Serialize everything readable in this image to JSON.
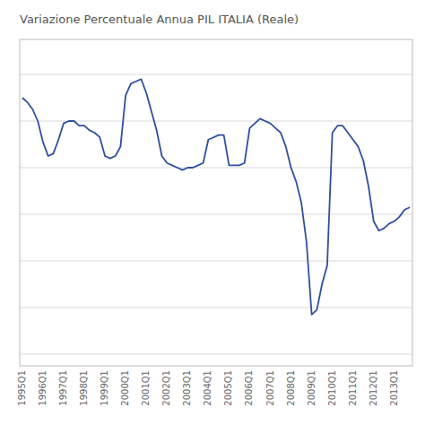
{
  "chart_data": {
    "type": "line",
    "title": "Variazione Percentuale Annua PIL ITALIA (Reale)",
    "categories": [
      "1995Q1",
      null,
      null,
      null,
      "1996Q1",
      null,
      null,
      null,
      "1997Q1",
      null,
      null,
      null,
      "1998Q1",
      null,
      null,
      null,
      "1999Q1",
      null,
      null,
      null,
      "2000Q1",
      null,
      null,
      null,
      "2001Q1",
      null,
      null,
      null,
      "2002Q1",
      null,
      null,
      null,
      "2003Q1",
      null,
      null,
      null,
      "2004Q1",
      null,
      null,
      null,
      "2005Q1",
      null,
      null,
      null,
      "2006Q1",
      null,
      null,
      null,
      "2007Q1",
      null,
      null,
      null,
      "2008Q1",
      null,
      null,
      null,
      "2009Q1",
      null,
      null,
      null,
      "2010Q1",
      null,
      null,
      null,
      "2011Q1",
      null,
      null,
      null,
      "2012Q1",
      null,
      null,
      null,
      "2013Q1",
      null,
      null,
      null
    ],
    "values": [
      3.0,
      2.8,
      2.5,
      2.0,
      1.1,
      0.5,
      0.6,
      1.2,
      1.9,
      2.0,
      2.0,
      1.8,
      1.8,
      1.6,
      1.5,
      1.3,
      0.5,
      0.4,
      0.5,
      0.9,
      3.1,
      3.6,
      3.7,
      3.8,
      3.2,
      2.4,
      1.6,
      0.5,
      0.2,
      0.1,
      0.0,
      -0.1,
      0.0,
      0.0,
      0.1,
      0.2,
      1.2,
      1.3,
      1.4,
      1.4,
      0.1,
      0.1,
      0.1,
      0.2,
      1.7,
      1.9,
      2.1,
      2.0,
      1.9,
      1.7,
      1.5,
      0.9,
      0.0,
      -0.6,
      -1.5,
      -3.2,
      -6.3,
      -6.1,
      -5.0,
      -4.2,
      1.5,
      1.8,
      1.8,
      1.5,
      1.2,
      0.9,
      0.3,
      -0.8,
      -2.3,
      -2.7,
      -2.6,
      -2.4,
      -2.3,
      -2.1,
      -1.8,
      -1.7
    ],
    "color": "#2E4FA0",
    "ylim": [
      -8.5,
      5.5
    ],
    "yticks": [
      -8,
      -6,
      -4,
      -2,
      0,
      2,
      4
    ],
    "grid": true,
    "tick_labels": "x"
  }
}
